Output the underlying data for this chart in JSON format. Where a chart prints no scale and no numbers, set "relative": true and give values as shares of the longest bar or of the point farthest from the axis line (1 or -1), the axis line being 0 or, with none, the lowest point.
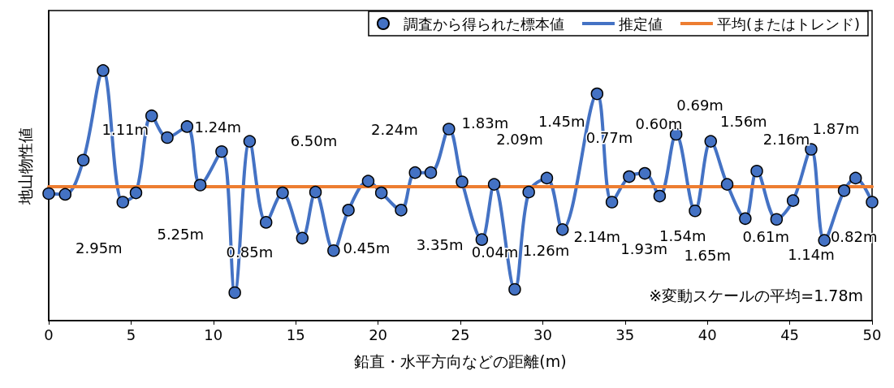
{
  "chart_data": {
    "type": "line",
    "relative": true,
    "xlabel": "鉛直・水平方向などの距離(m)",
    "ylabel": "地山物性値",
    "xlim": [
      0,
      50
    ],
    "xticks": [
      0,
      5,
      10,
      15,
      20,
      25,
      30,
      35,
      40,
      45,
      50
    ],
    "tick_labels": "x",
    "grid": false,
    "legend": "top right",
    "marker": "circle",
    "line_style": "solid",
    "series": [
      {
        "name": "調査から得られた標本値",
        "type": "scatter",
        "color": "#4472c4",
        "x": [
          0,
          1,
          2.1,
          3.3,
          4.5,
          5.3,
          6.25,
          7.2,
          8.4,
          9.2,
          10.5,
          11.3,
          12.2,
          13.2,
          14.2,
          15.4,
          16.2,
          17.3,
          18.2,
          19.4,
          20.2,
          21.4,
          22.25,
          23.2,
          24.3,
          25.1,
          26.3,
          27.05,
          28.3,
          29.15,
          30.25,
          31.2,
          33.3,
          34.2,
          35.25,
          36.2,
          37.1,
          38.1,
          39.25,
          40.2,
          41.2,
          42.3,
          43.0,
          44.2,
          45.2,
          46.3,
          47.1,
          48.3,
          49.0,
          50
        ],
        "values": [
          0.508,
          0.505,
          0.642,
          1.0,
          0.474,
          0.511,
          0.819,
          0.732,
          0.776,
          0.542,
          0.676,
          0.112,
          0.717,
          0.393,
          0.511,
          0.33,
          0.514,
          0.28,
          0.442,
          0.558,
          0.511,
          0.442,
          0.592,
          0.592,
          0.766,
          0.555,
          0.324,
          0.545,
          0.125,
          0.514,
          0.57,
          0.364,
          0.907,
          0.474,
          0.576,
          0.589,
          0.498,
          0.745,
          0.439,
          0.717,
          0.545,
          0.408,
          0.598,
          0.405,
          0.48,
          0.685,
          0.321,
          0.52,
          0.57,
          0.474
        ]
      },
      {
        "name": "推定値",
        "marker": "none",
        "color": "#4472c4",
        "x": [
          0,
          1,
          2.1,
          3.3,
          4.5,
          5.3,
          6.25,
          7.2,
          8.4,
          9.2,
          10.5,
          11.3,
          12.2,
          13.2,
          14.2,
          15.4,
          16.2,
          17.3,
          18.2,
          19.4,
          20.2,
          21.4,
          22.25,
          23.2,
          24.3,
          25.1,
          26.3,
          27.05,
          28.3,
          29.15,
          30.25,
          31.2,
          33.3,
          34.2,
          35.25,
          36.2,
          37.1,
          38.1,
          39.25,
          40.2,
          41.2,
          42.3,
          43.0,
          44.2,
          45.2,
          46.3,
          47.1,
          48.3,
          49.0,
          50
        ],
        "values": [
          0.508,
          0.505,
          0.642,
          1.0,
          0.474,
          0.511,
          0.819,
          0.732,
          0.776,
          0.542,
          0.676,
          0.112,
          0.717,
          0.393,
          0.511,
          0.33,
          0.514,
          0.28,
          0.442,
          0.558,
          0.511,
          0.442,
          0.592,
          0.592,
          0.766,
          0.555,
          0.324,
          0.545,
          0.125,
          0.514,
          0.57,
          0.364,
          0.907,
          0.474,
          0.576,
          0.589,
          0.498,
          0.745,
          0.439,
          0.717,
          0.545,
          0.408,
          0.598,
          0.405,
          0.48,
          0.685,
          0.321,
          0.52,
          0.57,
          0.474
        ]
      },
      {
        "name": "平均(またはトレンド)",
        "type": "line",
        "marker": "none",
        "color": "#ed7d31",
        "x": [
          0,
          50
        ],
        "values": [
          0.536,
          0.536
        ]
      }
    ],
    "annotations": [
      "1.11m",
      "1.24m",
      "6.50m",
      "2.24m",
      "1.83m",
      "2.09m",
      "1.45m",
      "0.77m",
      "0.60m",
      "0.69m",
      "1.56m",
      "2.16m",
      "1.87m",
      "2.95m",
      "5.25m",
      "0.85m",
      "0.45m",
      "3.35m",
      "0.04m",
      "1.26m",
      "2.14m",
      "1.93m",
      "1.54m",
      "1.65m",
      "0.61m",
      "1.14m",
      "0.82m",
      "※変動スケールの平均=1.78m"
    ]
  }
}
